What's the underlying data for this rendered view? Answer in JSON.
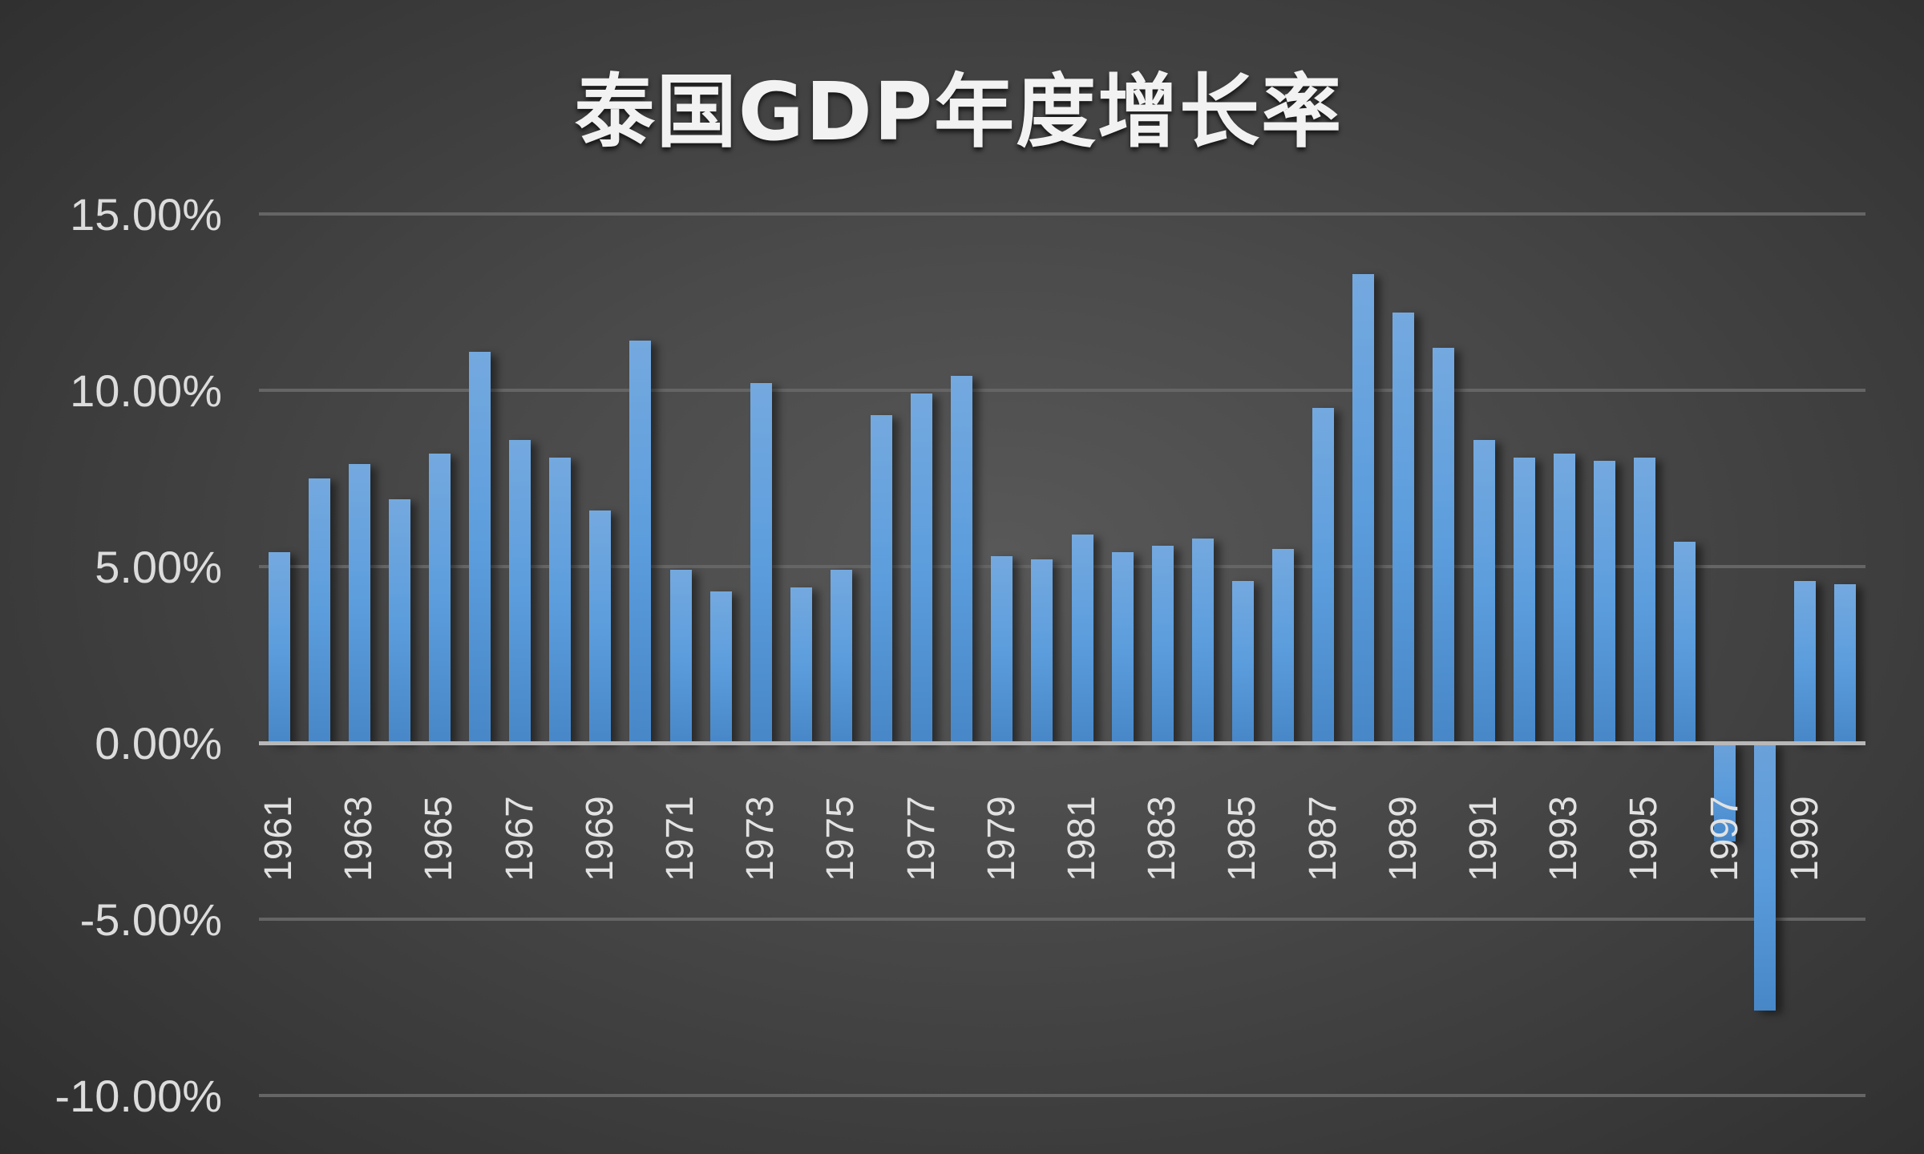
{
  "title": "泰国GDP年度增长率",
  "y_axis": {
    "ticks": [
      {
        "value": 15,
        "label": "15.00%"
      },
      {
        "value": 10,
        "label": "10.00%"
      },
      {
        "value": 5,
        "label": "5.00%"
      },
      {
        "value": 0,
        "label": "0.00%"
      },
      {
        "value": -5,
        "label": "-5.00%"
      },
      {
        "value": -10,
        "label": "-10.00%"
      }
    ]
  },
  "colors": {
    "bar_top": "#74a9df",
    "bar_bottom": "#4787c8",
    "gridline": "#656565",
    "baseline": "#b8b8b8",
    "text": "#dcdcdc",
    "background": "#3a3a3a"
  },
  "chart_data": {
    "type": "bar",
    "title": "泰国GDP年度增长率",
    "xlabel": "",
    "ylabel": "",
    "ylim": [
      -10,
      15
    ],
    "y_tick_format": "0.00%",
    "grid": true,
    "legend": null,
    "categories": [
      "1961",
      "1962",
      "1963",
      "1964",
      "1965",
      "1966",
      "1967",
      "1968",
      "1969",
      "1970",
      "1971",
      "1972",
      "1973",
      "1974",
      "1975",
      "1976",
      "1977",
      "1978",
      "1979",
      "1980",
      "1981",
      "1982",
      "1983",
      "1984",
      "1985",
      "1986",
      "1987",
      "1988",
      "1989",
      "1990",
      "1991",
      "1992",
      "1993",
      "1994",
      "1995",
      "1996",
      "1997",
      "1998",
      "1999",
      "2000"
    ],
    "visible_x_tick_labels": [
      "1961",
      "1963",
      "1965",
      "1967",
      "1969",
      "1971",
      "1973",
      "1975",
      "1977",
      "1979",
      "1981",
      "1983",
      "1985",
      "1987",
      "1989",
      "1991",
      "1993",
      "1995",
      "1997",
      "1999"
    ],
    "values": [
      5.4,
      7.5,
      7.9,
      6.9,
      8.2,
      11.1,
      8.6,
      8.1,
      6.6,
      11.4,
      4.9,
      4.3,
      10.2,
      4.4,
      4.9,
      9.3,
      9.9,
      10.4,
      5.3,
      5.2,
      5.9,
      5.4,
      5.6,
      5.8,
      4.6,
      5.5,
      9.5,
      13.3,
      12.2,
      11.2,
      8.6,
      8.1,
      8.2,
      8.0,
      8.1,
      5.7,
      -2.8,
      -7.6,
      4.6,
      4.5
    ],
    "unit": "%"
  }
}
